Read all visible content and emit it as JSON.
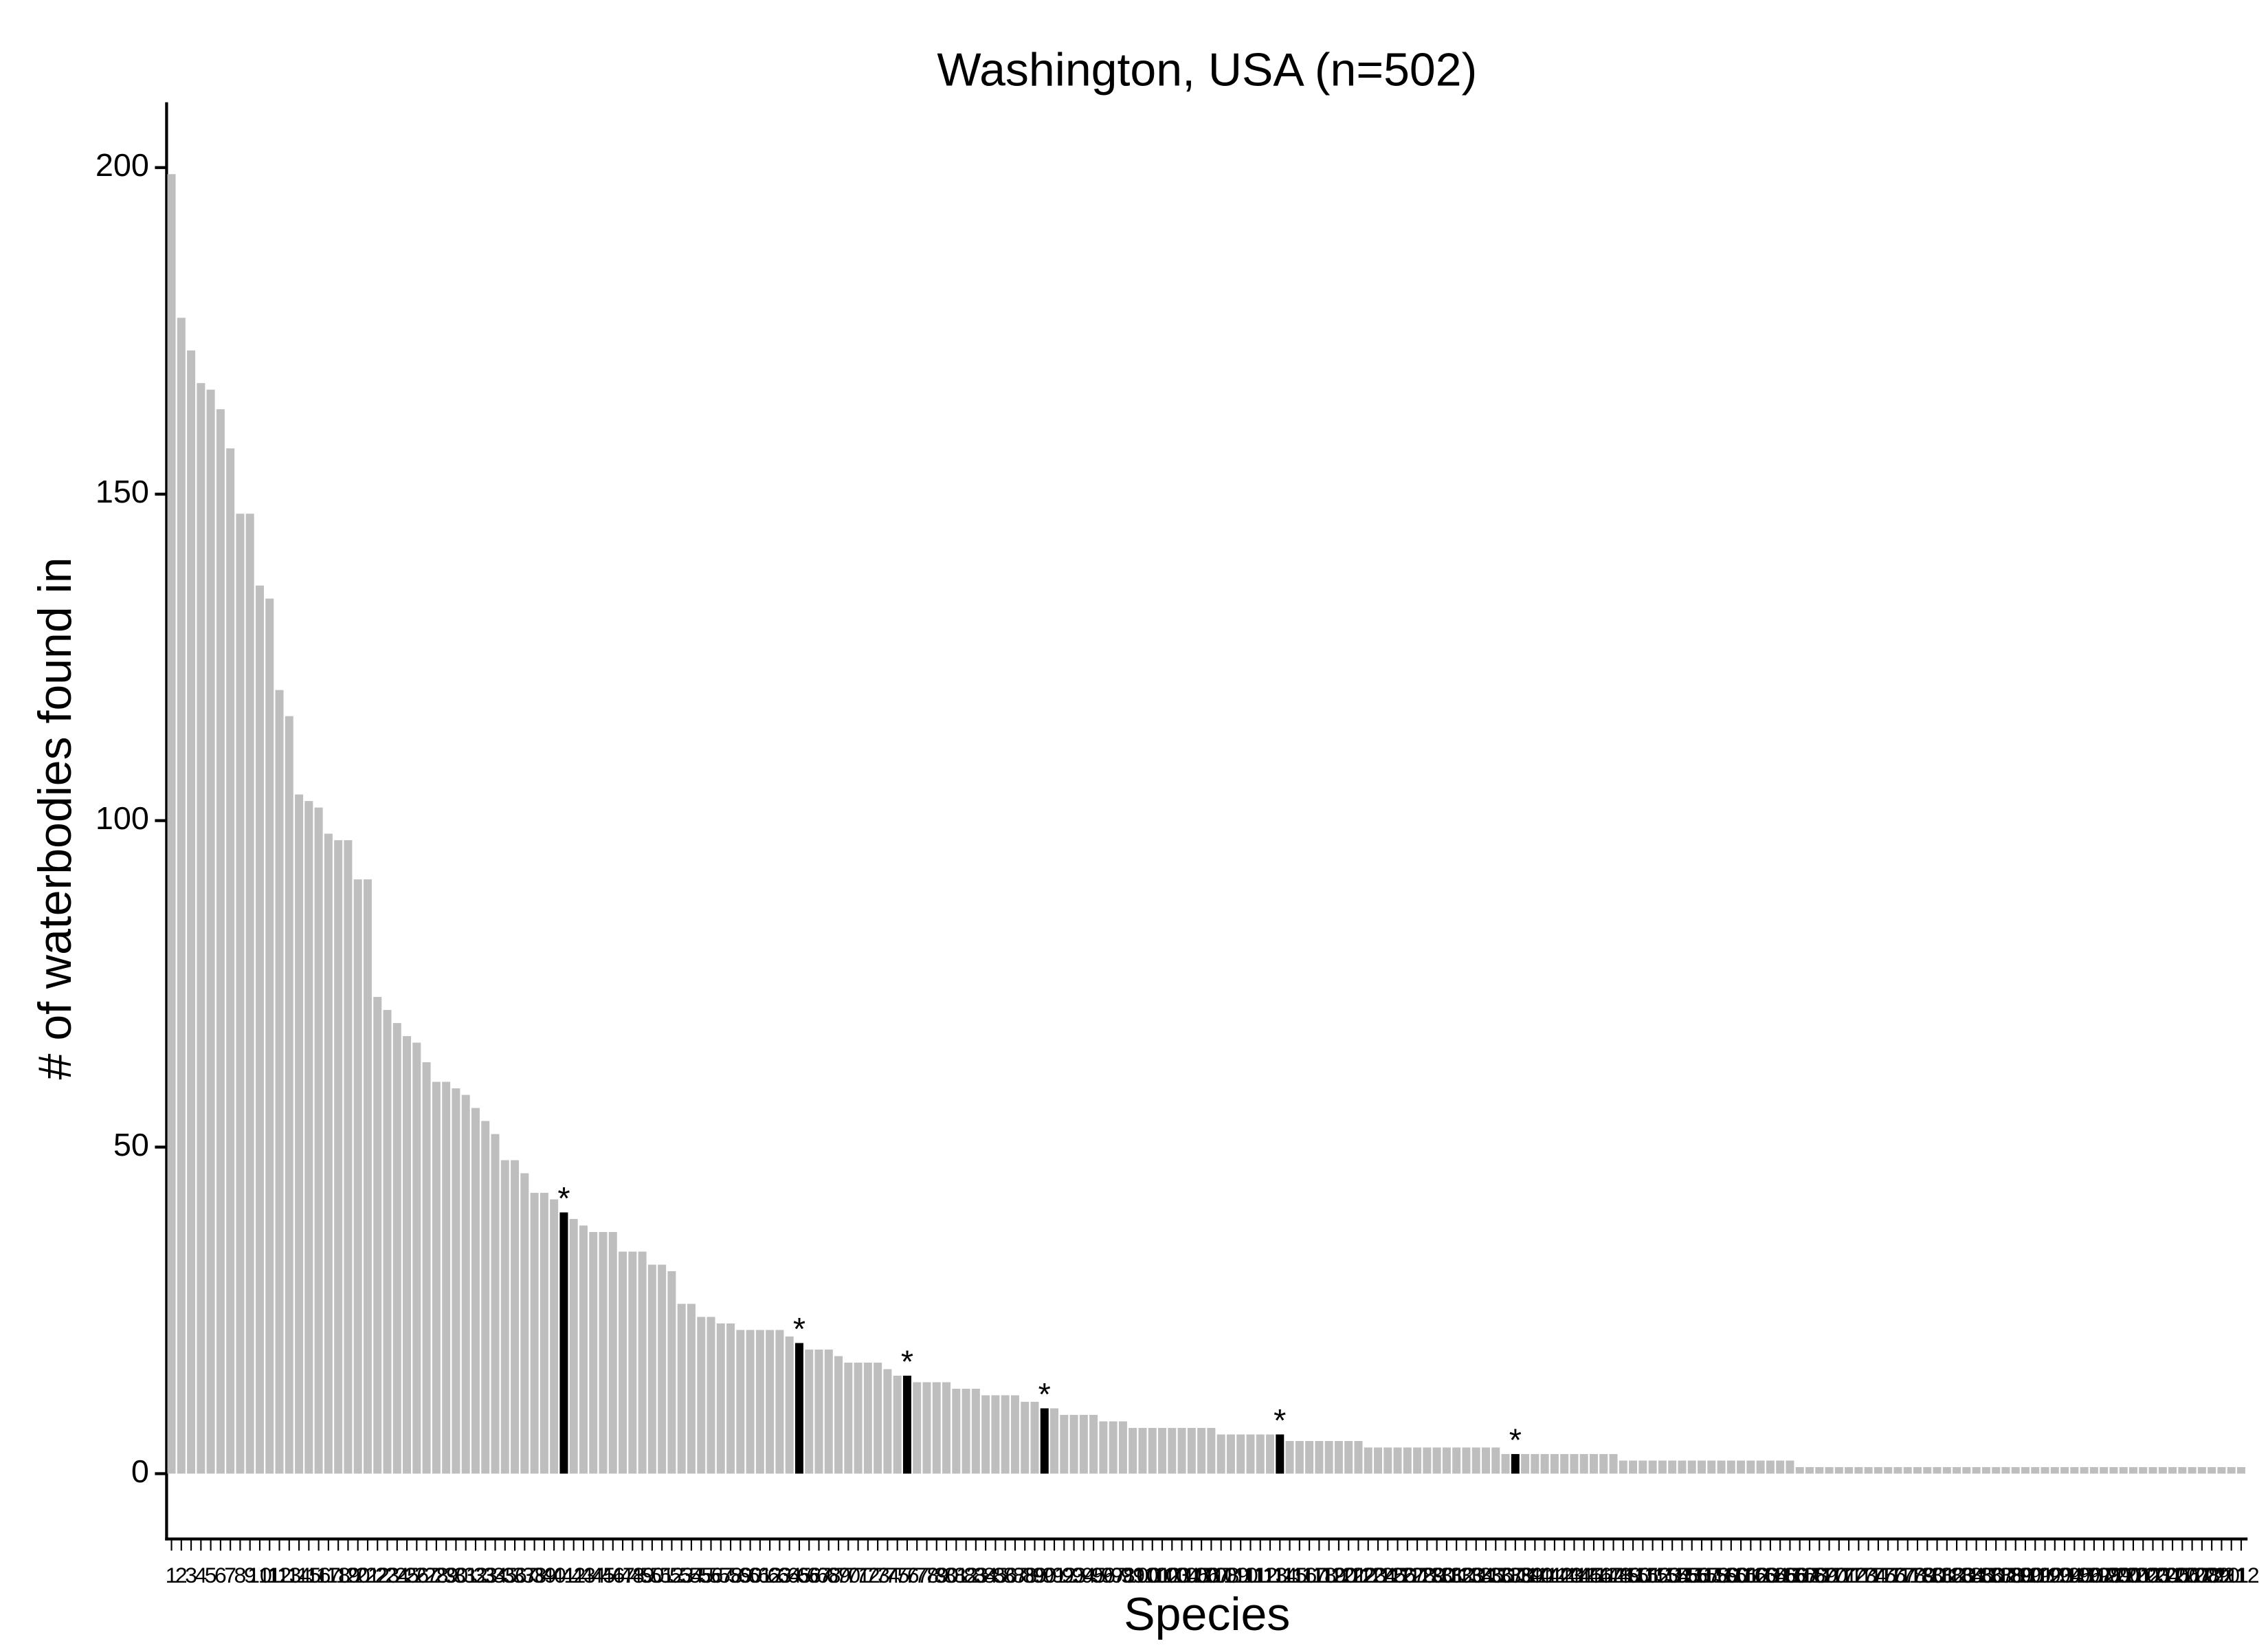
{
  "chart_data": {
    "type": "bar",
    "title": "Washington, USA (n=502)",
    "x_label": "Species",
    "y_label": "# of waterbodies found in",
    "color": "#bebebe",
    "highlight_color": "#000000",
    "categories": [
      "1",
      "2",
      "3",
      "4",
      "5",
      "6",
      "7",
      "8",
      "9",
      "10",
      "11",
      "12",
      "13",
      "14",
      "15",
      "16",
      "17",
      "18",
      "19",
      "20",
      "21",
      "22",
      "23",
      "24",
      "25",
      "26",
      "27",
      "28",
      "29",
      "30",
      "31",
      "32",
      "33",
      "34",
      "35",
      "36",
      "37",
      "38",
      "39",
      "40",
      "41",
      "42",
      "43",
      "44",
      "45",
      "46",
      "47",
      "48",
      "49",
      "50",
      "51",
      "52",
      "53",
      "54",
      "55",
      "56",
      "57",
      "58",
      "59",
      "60",
      "61",
      "62",
      "63",
      "64",
      "65",
      "66",
      "67",
      "68",
      "69",
      "70",
      "71",
      "72",
      "73",
      "74",
      "75",
      "76",
      "77",
      "78",
      "79",
      "80",
      "81",
      "82",
      "83",
      "84",
      "85",
      "86",
      "87",
      "88",
      "89",
      "90",
      "91",
      "92",
      "93",
      "94",
      "95",
      "96",
      "97",
      "98",
      "99",
      "100",
      "101",
      "102",
      "103",
      "104",
      "105",
      "106",
      "107",
      "108",
      "109",
      "110",
      "111",
      "112",
      "113",
      "114",
      "115",
      "116",
      "117",
      "118",
      "119",
      "120",
      "121",
      "122",
      "123",
      "124",
      "125",
      "126",
      "127",
      "128",
      "129",
      "130",
      "131",
      "132",
      "133",
      "134",
      "135",
      "136",
      "137",
      "138",
      "139",
      "140",
      "141",
      "142",
      "143",
      "144",
      "145",
      "146",
      "147",
      "148",
      "149",
      "150",
      "151",
      "152",
      "153",
      "154",
      "155",
      "156",
      "157",
      "158",
      "159",
      "160",
      "161",
      "162",
      "163",
      "164",
      "165",
      "166",
      "167",
      "168",
      "169",
      "170",
      "171",
      "172",
      "173",
      "174",
      "175",
      "176",
      "177",
      "178",
      "179",
      "180",
      "181",
      "182",
      "183",
      "184",
      "185",
      "186",
      "187",
      "188",
      "189",
      "190",
      "191",
      "192",
      "193",
      "194",
      "195",
      "196",
      "197",
      "198",
      "199",
      "200",
      "201",
      "202",
      "203",
      "204",
      "205",
      "206",
      "207",
      "208",
      "209",
      "210",
      "211",
      "212"
    ],
    "values": [
      199,
      177,
      172,
      167,
      166,
      163,
      157,
      147,
      147,
      136,
      134,
      120,
      116,
      104,
      103,
      102,
      98,
      97,
      97,
      91,
      91,
      73,
      71,
      69,
      67,
      66,
      63,
      60,
      60,
      59,
      58,
      56,
      54,
      52,
      48,
      48,
      46,
      43,
      43,
      42,
      40,
      39,
      38,
      37,
      37,
      37,
      34,
      34,
      34,
      32,
      32,
      31,
      26,
      26,
      24,
      24,
      23,
      23,
      22,
      22,
      22,
      22,
      22,
      21,
      20,
      19,
      19,
      19,
      18,
      17,
      17,
      17,
      17,
      16,
      15,
      15,
      14,
      14,
      14,
      14,
      13,
      13,
      13,
      12,
      12,
      12,
      12,
      11,
      11,
      10,
      10,
      9,
      9,
      9,
      9,
      8,
      8,
      8,
      7,
      7,
      7,
      7,
      7,
      7,
      7,
      7,
      7,
      6,
      6,
      6,
      6,
      6,
      6,
      6,
      5,
      5,
      5,
      5,
      5,
      5,
      5,
      5,
      4,
      4,
      4,
      4,
      4,
      4,
      4,
      4,
      4,
      4,
      4,
      4,
      4,
      4,
      3,
      3,
      3,
      3,
      3,
      3,
      3,
      3,
      3,
      3,
      3,
      3,
      2,
      2,
      2,
      2,
      2,
      2,
      2,
      2,
      2,
      2,
      2,
      2,
      2,
      2,
      2,
      2,
      2,
      2,
      1,
      1,
      1,
      1,
      1,
      1,
      1,
      1,
      1,
      1,
      1,
      1,
      1,
      1,
      1,
      1,
      1,
      1,
      1,
      1,
      1,
      1,
      1,
      1,
      1,
      1,
      1,
      1,
      1,
      1,
      1,
      1,
      1,
      1,
      1,
      1,
      1,
      1,
      1,
      1,
      1,
      1,
      1,
      1,
      1,
      1
    ],
    "annotations": [
      {
        "category": "41",
        "text": "*"
      },
      {
        "category": "65",
        "text": "*"
      },
      {
        "category": "76",
        "text": "*"
      },
      {
        "category": "90",
        "text": "*"
      },
      {
        "category": "114",
        "text": "*"
      },
      {
        "category": "138",
        "text": "*"
      }
    ],
    "ylim": [
      -10,
      210
    ],
    "yticks": [
      0,
      50,
      100,
      150,
      200
    ],
    "grid": false
  }
}
